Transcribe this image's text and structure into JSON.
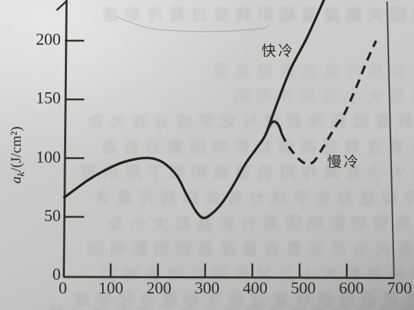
{
  "chart_data": {
    "type": "line",
    "title": "",
    "xlabel": "",
    "ylabel": "a_k/(J/cm²)",
    "xlim": [
      0,
      700
    ],
    "ylim": [
      0,
      235
    ],
    "x_ticks": [
      0,
      100,
      200,
      300,
      400,
      500,
      600,
      700
    ],
    "y_ticks": [
      0,
      50,
      100,
      150,
      200
    ],
    "grid": false,
    "legend_position": "inline-annotations",
    "series": [
      {
        "name": "快冷",
        "style": "solid",
        "points": [
          [
            0,
            66
          ],
          [
            55,
            82
          ],
          [
            110,
            94
          ],
          [
            150,
            99
          ],
          [
            185,
            100
          ],
          [
            212,
            96
          ],
          [
            240,
            85
          ],
          [
            262,
            68
          ],
          [
            282,
            54
          ],
          [
            298,
            49
          ],
          [
            318,
            54
          ],
          [
            338,
            63
          ],
          [
            360,
            77
          ],
          [
            385,
            95
          ],
          [
            410,
            109
          ],
          [
            428,
            120
          ],
          [
            450,
            144
          ],
          [
            480,
            175
          ],
          [
            515,
            202
          ],
          [
            552,
            235
          ]
        ]
      },
      {
        "name": "慢冷",
        "style": "dashed",
        "segments": [
          {
            "style": "solid",
            "points": [
              [
                428,
                120
              ],
              [
                437,
                128
              ],
              [
                444,
                131
              ],
              [
                452,
                130
              ],
              [
                458,
                126
              ],
              [
                462,
                121
              ]
            ]
          },
          {
            "style": "dashed",
            "points": [
              [
                462,
                121
              ],
              [
                472,
                113
              ],
              [
                486,
                105
              ],
              [
                502,
                98
              ],
              [
                516,
                95
              ],
              [
                530,
                97
              ],
              [
                542,
                104
              ],
              [
                560,
                116
              ],
              [
                578,
                128
              ],
              [
                594,
                137
              ],
              [
                610,
                151
              ],
              [
                627,
                167
              ],
              [
                644,
                184
              ],
              [
                662,
                200
              ]
            ]
          }
        ]
      }
    ]
  },
  "figure": {
    "ylabel": {
      "var": "a",
      "sub": "k",
      "unit": "/(J/cm²)"
    },
    "ink_color": "#24221e",
    "axis_color": "#33312d",
    "paper_color": "#c7c7c5"
  },
  "background": {
    "bleed_glyphs": "的性能回火脆度温组织转变过程冷却速与化学成分有关杂质元素含量提高钢韧影响因素分析晶粒大小及其作用机理说明如下所示可见得出结论"
  }
}
